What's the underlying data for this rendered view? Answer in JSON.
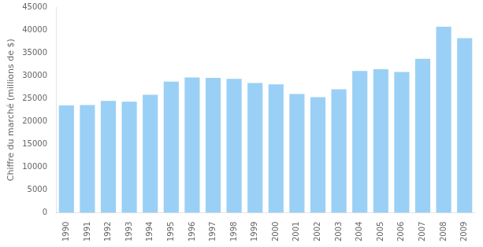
{
  "chart_data": {
    "type": "bar",
    "categories": [
      "1990",
      "1991",
      "1992",
      "1993",
      "1994",
      "1995",
      "1996",
      "1997",
      "1998",
      "1999",
      "2000",
      "2001",
      "2002",
      "2003",
      "2004",
      "2005",
      "2006",
      "2007",
      "2008",
      "2009"
    ],
    "values": [
      23500,
      23600,
      24500,
      24300,
      25800,
      28700,
      29600,
      29500,
      29300,
      28400,
      28100,
      26000,
      25300,
      27000,
      31000,
      31400,
      30800,
      33700,
      40700,
      38200
    ],
    "ylabel": "Chiffre du marché (millions de $)",
    "ylim": [
      0,
      45000
    ],
    "yticks": [
      0,
      5000,
      10000,
      15000,
      20000,
      25000,
      30000,
      35000,
      40000,
      45000
    ],
    "grid": false
  }
}
